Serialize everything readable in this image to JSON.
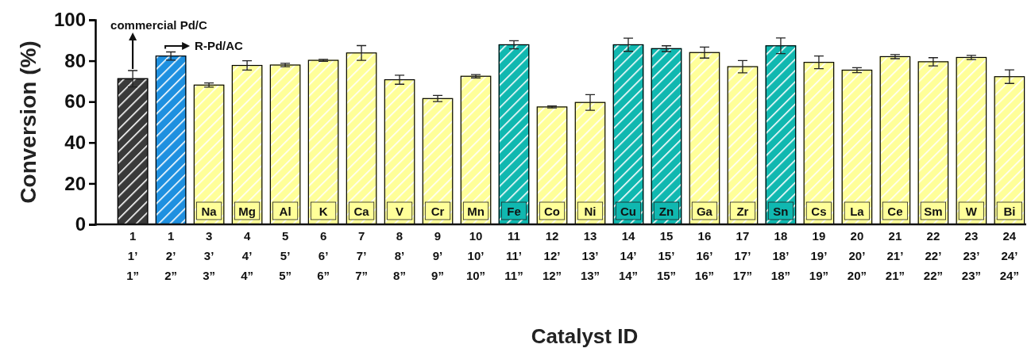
{
  "chart_data": {
    "type": "bar",
    "xlabel": "Catalyst ID",
    "ylabel": "Conversion (%)",
    "categories": [
      "1\n1’\n1”",
      "1\n2’\n2”",
      "3\n3’\n3”",
      "4\n4’\n4”",
      "5\n5’\n5”",
      "6\n6’\n6”",
      "7\n7’\n7”",
      "8\n8’\n8”",
      "9\n9’\n9”",
      "10\n10’\n10”",
      "11\n11’\n11”",
      "12\n12’\n12”",
      "13\n13’\n13”",
      "14\n14’\n14”",
      "15\n15’\n15”",
      "16\n16’\n16”",
      "17\n17’\n17”",
      "18\n18’\n18”",
      "19\n19’\n19”",
      "20\n20’\n20”",
      "21\n21’\n21”",
      "22\n22’\n22”",
      "23\n23’\n23”",
      "24\n24’\n24”"
    ],
    "values": [
      71.2,
      82.3,
      68.1,
      77.7,
      77.9,
      80.2,
      83.8,
      70.7,
      61.5,
      72.4,
      87.8,
      57.4,
      59.6,
      87.8,
      85.9,
      84.0,
      77.1,
      87.3,
      79.2,
      75.4,
      82.0,
      79.5,
      81.6,
      72.2
    ],
    "errors": [
      4.0,
      2.0,
      1.0,
      2.3,
      0.8,
      0.5,
      3.6,
      2.2,
      1.5,
      0.8,
      2.0,
      0.5,
      3.8,
      3.2,
      1.4,
      2.7,
      3.0,
      3.8,
      3.1,
      1.2,
      1.0,
      2.0,
      1.0,
      3.3
    ],
    "colors": [
      "#3a3a3a",
      "#1e90e0",
      "#ffff99",
      "#ffff99",
      "#ffff99",
      "#ffff99",
      "#ffff99",
      "#ffff99",
      "#ffff99",
      "#ffff99",
      "#10b8b0",
      "#ffff99",
      "#ffff99",
      "#10b8b0",
      "#10b8b0",
      "#ffff99",
      "#ffff99",
      "#10b8b0",
      "#ffff99",
      "#ffff99",
      "#ffff99",
      "#ffff99",
      "#ffff99",
      "#ffff99"
    ],
    "ylim": [
      0,
      100
    ],
    "yticks": [
      0,
      20,
      40,
      60,
      80,
      100
    ],
    "grid": false,
    "annotations": [
      {
        "text": "commercial Pd/C",
        "x": "1\n1’\n1”",
        "y": 75.2
      },
      {
        "text": "R-Pd/AC",
        "x": "1\n2’\n2”",
        "y": 84.3
      },
      "Na",
      "Mg",
      "Al",
      "K",
      "Ca",
      "V",
      "Cr",
      "Mn",
      "Fe",
      "Co",
      "Ni",
      "Cu",
      "Zn",
      "Ga",
      "Zr",
      "Sn",
      "Cs",
      "La",
      "Ce",
      "Sm",
      "W",
      "Bi"
    ]
  }
}
